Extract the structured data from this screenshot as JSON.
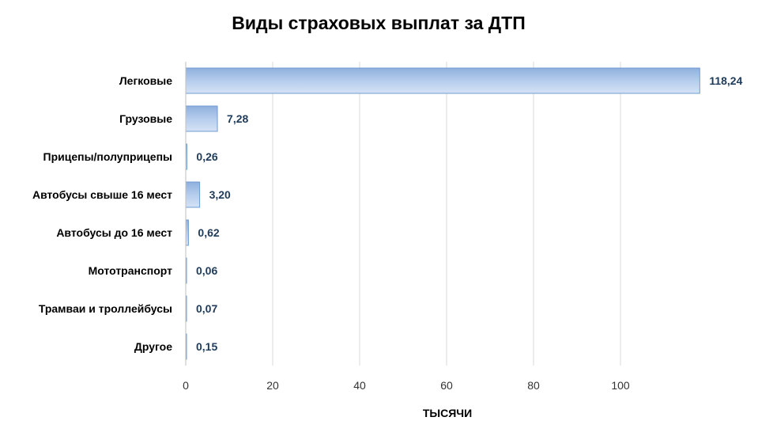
{
  "chart_data": {
    "type": "bar",
    "orientation": "horizontal",
    "title": "Виды страховых выплат за ДТП",
    "xlabel": "ТЫСЯЧИ",
    "ylabel": "",
    "xlim": [
      0,
      120
    ],
    "ticks": [
      0,
      20,
      40,
      60,
      80,
      100
    ],
    "grid": true,
    "legend": "none",
    "bar_color": "#a9c4e8",
    "categories": [
      "Легковые",
      "Грузовые",
      "Прицепы/полуприцепы",
      "Автобусы свыше 16 мест",
      "Автобусы до 16 мест",
      "Мототранспорт",
      "Трамваи и троллейбусы",
      "Другое"
    ],
    "values": [
      118.24,
      7.28,
      0.26,
      3.2,
      0.62,
      0.06,
      0.07,
      0.15
    ],
    "value_labels": [
      "118,24",
      "7,28",
      "0,26",
      "3,20",
      "0,62",
      "0,06",
      "0,07",
      "0,15"
    ]
  }
}
